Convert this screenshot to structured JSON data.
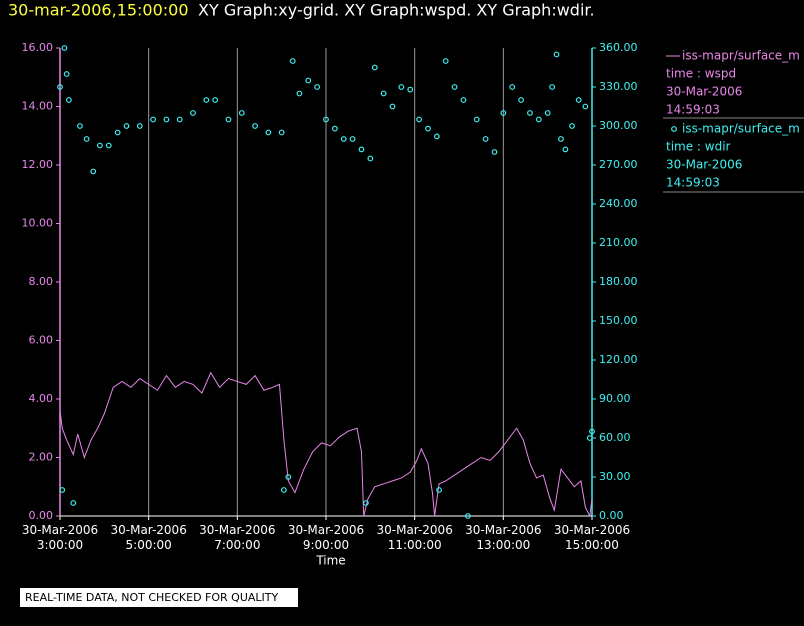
{
  "header": {
    "timestamp": "30-mar-2006,15:00:00",
    "title": "XY Graph:xy-grid.  XY Graph:wspd.  XY Graph:wdir."
  },
  "footer": "REAL-TIME DATA, NOT CHECKED FOR QUALITY",
  "chart_data": {
    "type": "line",
    "xlabel": "Time",
    "grid": true,
    "xlim": [
      3,
      15
    ],
    "xticks": [
      {
        "value": 3,
        "label": "30-Mar-2006\n3:00:00"
      },
      {
        "value": 5,
        "label": "30-Mar-2006\n5:00:00"
      },
      {
        "value": 7,
        "label": "30-Mar-2006\n7:00:00"
      },
      {
        "value": 9,
        "label": "30-Mar-2006\n9:00:00"
      },
      {
        "value": 11,
        "label": "30-Mar-2006\n11:00:00"
      },
      {
        "value": 13,
        "label": "30-Mar-2006\n13:00:00"
      },
      {
        "value": 15,
        "label": "30-Mar-2006\n15:00:00"
      }
    ],
    "ylim": [
      0,
      16
    ],
    "yticks": [
      {
        "value": 0,
        "label": "0.00"
      },
      {
        "value": 2,
        "label": "2.00"
      },
      {
        "value": 4,
        "label": "4.00"
      },
      {
        "value": 6,
        "label": "6.00"
      },
      {
        "value": 8,
        "label": "8.00"
      },
      {
        "value": 10,
        "label": "10.00"
      },
      {
        "value": 12,
        "label": "12.00"
      },
      {
        "value": 14,
        "label": "14.00"
      },
      {
        "value": 16,
        "label": "16.00"
      }
    ],
    "y2lim": [
      0,
      360
    ],
    "y2ticks": [
      {
        "value": 0,
        "label": "0.00"
      },
      {
        "value": 30,
        "label": "30.00"
      },
      {
        "value": 60,
        "label": "60.00"
      },
      {
        "value": 90,
        "label": "90.00"
      },
      {
        "value": 120,
        "label": "120.00"
      },
      {
        "value": 150,
        "label": "150.00"
      },
      {
        "value": 180,
        "label": "180.00"
      },
      {
        "value": 210,
        "label": "210.00"
      },
      {
        "value": 240,
        "label": "240.00"
      },
      {
        "value": 270,
        "label": "270.00"
      },
      {
        "value": 300,
        "label": "300.00"
      },
      {
        "value": 330,
        "label": "330.00"
      },
      {
        "value": 360,
        "label": "360.00"
      }
    ],
    "series": [
      {
        "name": "iss-mapr/surface_m",
        "legend_text": [
          "time : wspd",
          "30-Mar-2006",
          "14:59:03"
        ],
        "type": "line",
        "axis": "y",
        "color": "#e887e8",
        "x": [
          3.0,
          3.05,
          3.15,
          3.3,
          3.4,
          3.55,
          3.7,
          3.85,
          4.0,
          4.2,
          4.4,
          4.6,
          4.8,
          5.0,
          5.2,
          5.4,
          5.6,
          5.8,
          6.0,
          6.2,
          6.4,
          6.6,
          6.8,
          7.0,
          7.2,
          7.4,
          7.6,
          7.8,
          7.95,
          8.05,
          8.15,
          8.3,
          8.5,
          8.7,
          8.9,
          9.1,
          9.3,
          9.5,
          9.7,
          9.8,
          9.85,
          9.95,
          10.1,
          10.3,
          10.5,
          10.7,
          10.9,
          11.05,
          11.15,
          11.3,
          11.4,
          11.45,
          11.55,
          11.7,
          11.9,
          12.1,
          12.3,
          12.5,
          12.7,
          12.9,
          13.1,
          13.3,
          13.45,
          13.6,
          13.75,
          13.9,
          14.05,
          14.15,
          14.3,
          14.45,
          14.6,
          14.75,
          14.85,
          14.95,
          15.0
        ],
        "values": [
          3.6,
          3.0,
          2.6,
          2.1,
          2.8,
          2.0,
          2.6,
          3.0,
          3.5,
          4.4,
          4.6,
          4.4,
          4.7,
          4.5,
          4.3,
          4.8,
          4.4,
          4.6,
          4.5,
          4.2,
          4.9,
          4.4,
          4.7,
          4.6,
          4.5,
          4.8,
          4.3,
          4.4,
          4.5,
          2.6,
          1.2,
          0.8,
          1.6,
          2.2,
          2.5,
          2.4,
          2.7,
          2.9,
          3.0,
          2.2,
          0.0,
          0.6,
          1.0,
          1.1,
          1.2,
          1.3,
          1.5,
          1.9,
          2.3,
          1.8,
          0.8,
          0.0,
          1.1,
          1.2,
          1.4,
          1.6,
          1.8,
          2.0,
          1.9,
          2.2,
          2.6,
          3.0,
          2.6,
          1.8,
          1.3,
          1.4,
          0.6,
          0.2,
          1.6,
          1.3,
          1.0,
          1.2,
          0.3,
          0.0,
          0.6
        ]
      },
      {
        "name": "iss-mapr/surface_m",
        "legend_text": [
          "time : wdir",
          "30-Mar-2006",
          "14:59:03"
        ],
        "type": "scatter",
        "axis": "y2",
        "color": "#3ff0f0",
        "x": [
          3.0,
          3.05,
          3.1,
          3.15,
          3.2,
          3.3,
          3.45,
          3.6,
          3.75,
          3.9,
          4.1,
          4.3,
          4.5,
          4.8,
          5.1,
          5.4,
          5.7,
          6.0,
          6.3,
          6.5,
          6.8,
          7.1,
          7.4,
          7.7,
          8.0,
          8.05,
          8.15,
          8.25,
          8.4,
          8.6,
          8.8,
          9.0,
          9.2,
          9.4,
          9.6,
          9.8,
          9.9,
          10.0,
          10.1,
          10.3,
          10.5,
          10.7,
          10.9,
          11.1,
          11.3,
          11.5,
          11.55,
          11.7,
          11.9,
          12.1,
          12.2,
          12.4,
          12.6,
          12.8,
          13.0,
          13.2,
          13.4,
          13.6,
          13.8,
          14.0,
          14.1,
          14.2,
          14.3,
          14.4,
          14.55,
          14.7,
          14.85,
          14.95,
          15.0
        ],
        "values": [
          330,
          20,
          360,
          340,
          320,
          10,
          300,
          290,
          265,
          285,
          285,
          295,
          300,
          300,
          305,
          305,
          305,
          310,
          320,
          320,
          305,
          310,
          300,
          295,
          295,
          20,
          30,
          350,
          325,
          335,
          330,
          305,
          298,
          290,
          290,
          282,
          10,
          275,
          345,
          325,
          315,
          330,
          328,
          305,
          298,
          292,
          20,
          350,
          330,
          320,
          0,
          305,
          290,
          280,
          310,
          330,
          320,
          310,
          305,
          310,
          330,
          355,
          290,
          282,
          300,
          320,
          315,
          60,
          65
        ]
      }
    ]
  }
}
